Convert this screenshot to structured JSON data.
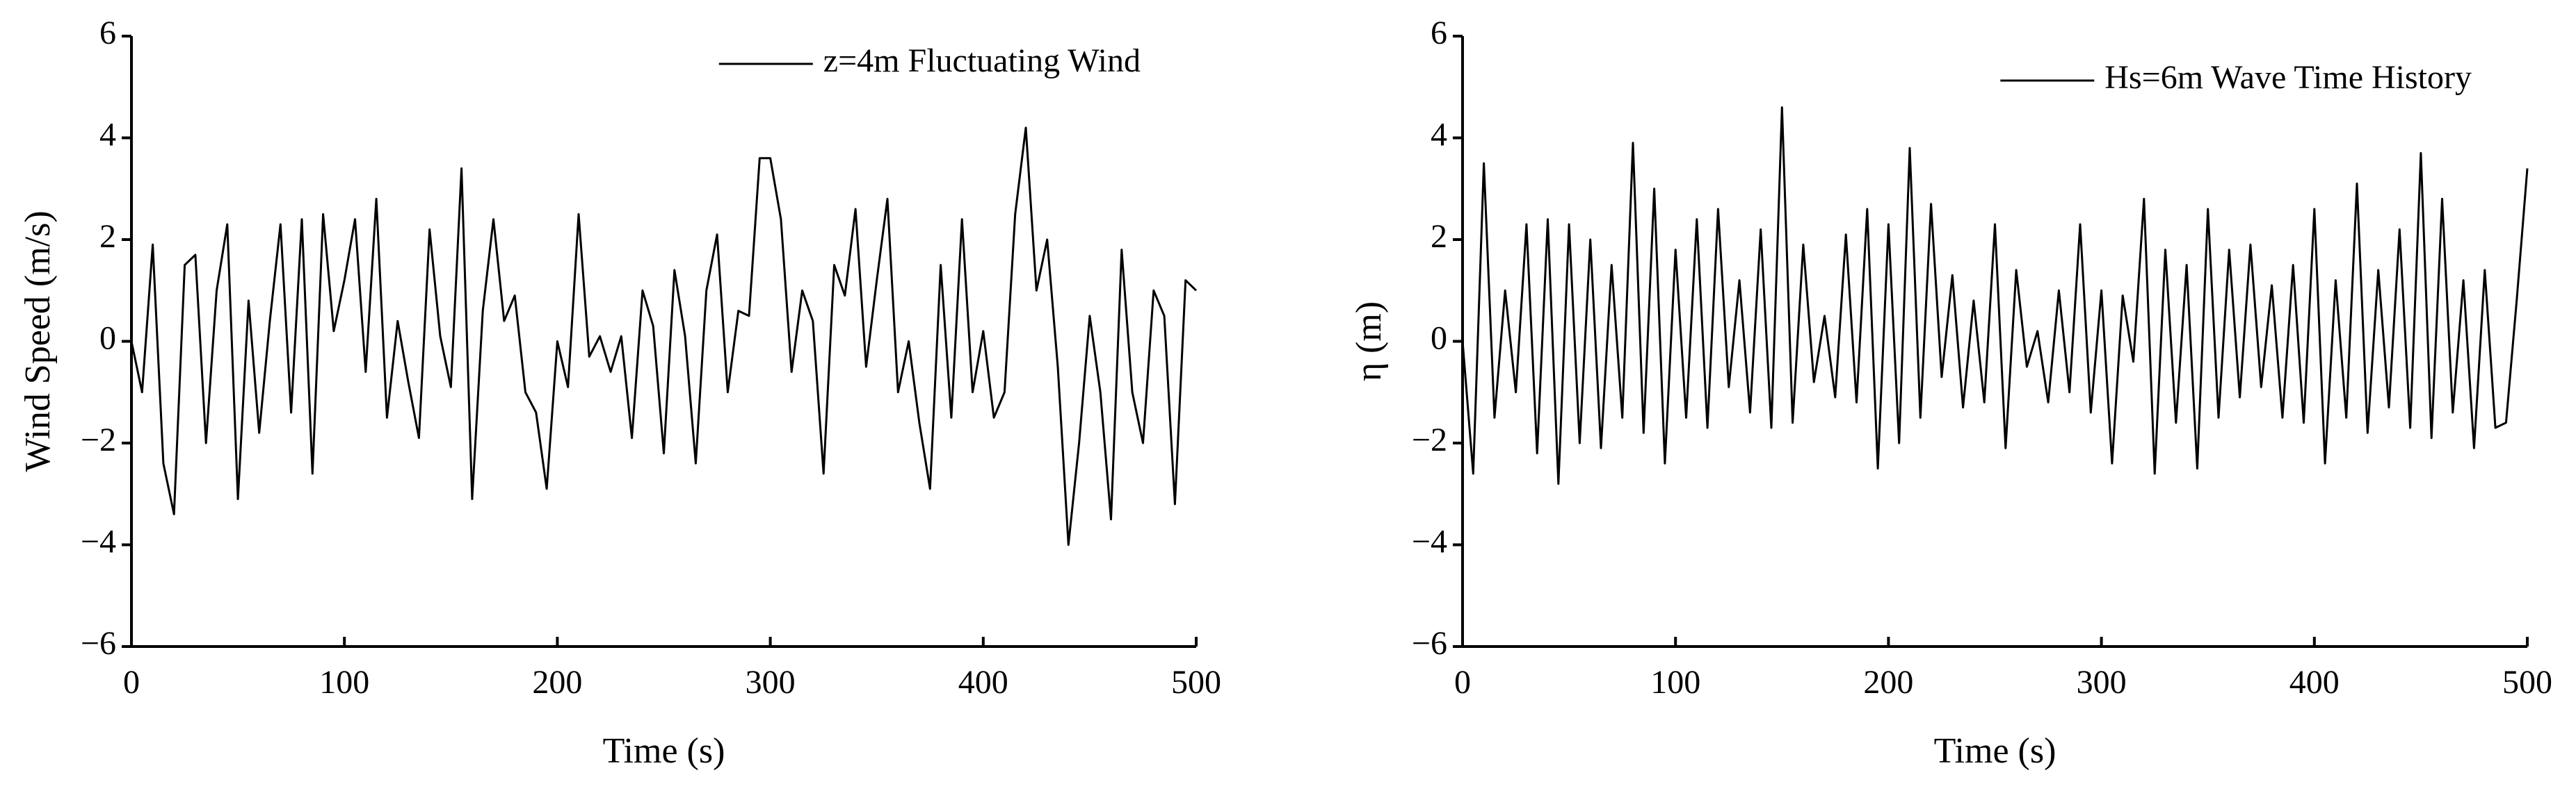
{
  "chart_data": [
    {
      "type": "line",
      "xlabel": "Time (s)",
      "ylabel": "Wind Speed (m/s)",
      "legend": "upper right",
      "x": [
        0,
        5,
        10,
        15,
        20,
        25,
        30,
        35,
        40,
        45,
        50,
        55,
        60,
        65,
        70,
        75,
        80,
        85,
        90,
        95,
        100,
        105,
        110,
        115,
        120,
        125,
        130,
        135,
        140,
        145,
        150,
        155,
        160,
        165,
        170,
        175,
        180,
        185,
        190,
        195,
        200,
        205,
        210,
        215,
        220,
        225,
        230,
        235,
        240,
        245,
        250,
        255,
        260,
        265,
        270,
        275,
        280,
        285,
        290,
        295,
        300,
        305,
        310,
        315,
        320,
        325,
        330,
        335,
        340,
        345,
        350,
        355,
        360,
        365,
        370,
        375,
        380,
        385,
        390,
        395,
        400,
        405,
        410,
        415,
        420,
        425,
        430,
        435,
        440,
        445,
        450,
        455,
        460,
        465,
        470,
        475,
        480,
        485,
        490,
        495,
        500
      ],
      "series": [
        {
          "name": "z=4m Fluctuating Wind",
          "color": "#000000",
          "values": [
            0,
            -1.0,
            1.9,
            -2.4,
            -3.4,
            1.5,
            1.7,
            -2.0,
            1.0,
            2.3,
            -3.1,
            0.8,
            -1.8,
            0.4,
            2.3,
            -1.4,
            2.4,
            -2.6,
            2.5,
            0.2,
            1.2,
            2.4,
            -0.6,
            2.8,
            -1.5,
            0.4,
            -0.8,
            -1.9,
            2.2,
            0.1,
            -0.9,
            3.4,
            -3.1,
            0.6,
            2.4,
            0.4,
            0.9,
            -1.0,
            -1.4,
            -2.9,
            0.0,
            -0.9,
            2.5,
            -0.3,
            0.1,
            -0.6,
            0.1,
            -1.9,
            1.0,
            0.3,
            -2.2,
            1.4,
            0.1,
            -2.4,
            1.0,
            2.1,
            -1.0,
            0.6,
            0.5,
            3.6,
            3.6,
            2.4,
            -0.6,
            1.0,
            0.4,
            -2.6,
            1.5,
            0.9,
            2.6,
            -0.5,
            1.2,
            2.8,
            -1.0,
            0.0,
            -1.6,
            -2.9,
            1.5,
            -1.5,
            2.4,
            -1.0,
            0.2,
            -1.5,
            -1.0,
            2.5,
            4.2,
            1.0,
            2.0,
            -0.5,
            -4.0,
            -2.0,
            0.5,
            -1.0,
            -3.5,
            1.8,
            -1.0,
            -2.0,
            1.0,
            0.5,
            -3.2,
            1.2,
            1.0
          ]
        }
      ],
      "xlim": [
        0,
        500
      ],
      "xticks": [
        0,
        100,
        200,
        300,
        400,
        500
      ],
      "ylim": [
        -6,
        6
      ],
      "yticks": [
        {
          "value": -6,
          "label": "−6"
        },
        {
          "value": -4,
          "label": "−4"
        },
        {
          "value": -2,
          "label": "−2"
        },
        0,
        2,
        4,
        6
      ]
    },
    {
      "type": "line",
      "xlabel": "Time (s)",
      "ylabel": "η (m)",
      "legend": "upper right",
      "x": [
        0,
        5,
        10,
        15,
        20,
        25,
        30,
        35,
        40,
        45,
        50,
        55,
        60,
        65,
        70,
        75,
        80,
        85,
        90,
        95,
        100,
        105,
        110,
        115,
        120,
        125,
        130,
        135,
        140,
        145,
        150,
        155,
        160,
        165,
        170,
        175,
        180,
        185,
        190,
        195,
        200,
        205,
        210,
        215,
        220,
        225,
        230,
        235,
        240,
        245,
        250,
        255,
        260,
        265,
        270,
        275,
        280,
        285,
        290,
        295,
        300,
        305,
        310,
        315,
        320,
        325,
        330,
        335,
        340,
        345,
        350,
        355,
        360,
        365,
        370,
        375,
        380,
        385,
        390,
        395,
        400,
        405,
        410,
        415,
        420,
        425,
        430,
        435,
        440,
        445,
        450,
        455,
        460,
        465,
        470,
        475,
        480,
        485,
        490,
        495,
        500
      ],
      "series": [
        {
          "name": "Hs=6m Wave Time History",
          "color": "#000000",
          "values": [
            0,
            -2.6,
            3.5,
            -1.5,
            1.0,
            -1.0,
            2.3,
            -2.2,
            2.4,
            -2.8,
            2.3,
            -2.0,
            2.0,
            -2.1,
            1.5,
            -1.5,
            3.9,
            -1.8,
            3.0,
            -2.4,
            1.8,
            -1.5,
            2.4,
            -1.7,
            2.6,
            -0.9,
            1.2,
            -1.4,
            2.2,
            -1.7,
            4.6,
            -1.6,
            1.9,
            -0.8,
            0.5,
            -1.1,
            2.1,
            -1.2,
            2.6,
            -2.5,
            2.3,
            -2.0,
            3.8,
            -1.5,
            2.7,
            -0.7,
            1.3,
            -1.3,
            0.8,
            -1.2,
            2.3,
            -2.1,
            1.4,
            -0.5,
            0.2,
            -1.2,
            1.0,
            -1.0,
            2.3,
            -1.4,
            1.0,
            -2.4,
            0.9,
            -0.4,
            2.8,
            -2.6,
            1.8,
            -1.6,
            1.5,
            -2.5,
            2.6,
            -1.5,
            1.8,
            -1.1,
            1.9,
            -0.9,
            1.1,
            -1.5,
            1.5,
            -1.6,
            2.6,
            -2.4,
            1.2,
            -1.5,
            3.1,
            -1.8,
            1.4,
            -1.3,
            2.2,
            -1.7,
            3.7,
            -1.9,
            2.8,
            -1.4,
            1.2,
            -2.1,
            1.4,
            -1.7,
            -1.6,
            0.8,
            3.4
          ]
        }
      ],
      "xlim": [
        0,
        500
      ],
      "xticks": [
        0,
        100,
        200,
        300,
        400,
        500
      ],
      "ylim": [
        -6,
        6
      ],
      "yticks": [
        {
          "value": -6,
          "label": "−6"
        },
        {
          "value": -4,
          "label": "−4"
        },
        {
          "value": -2,
          "label": "−2"
        },
        0,
        2,
        4,
        6
      ]
    }
  ]
}
